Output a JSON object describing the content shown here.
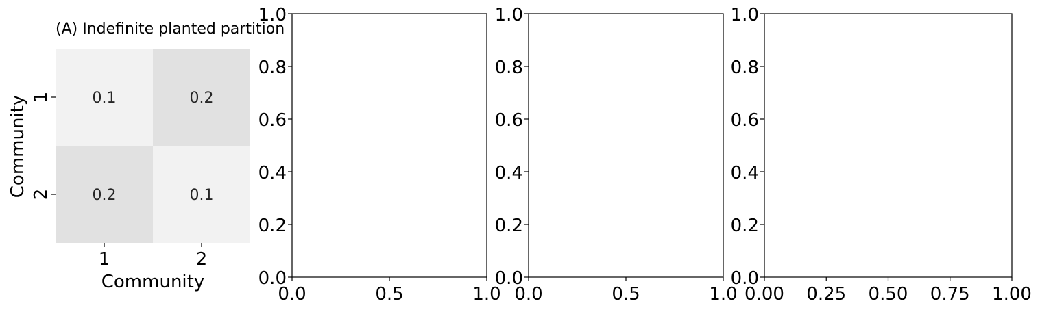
{
  "chart_data": [
    {
      "type": "heatmap",
      "title": "(A) Indefinite planted partition",
      "xlabel": "Community",
      "ylabel": "Community",
      "x_categories": [
        "1",
        "2"
      ],
      "y_categories": [
        "1",
        "2"
      ],
      "values": [
        [
          0.1,
          0.2
        ],
        [
          0.2,
          0.1
        ]
      ],
      "cell_labels": [
        [
          "0.1",
          "0.2"
        ],
        [
          "0.2",
          "0.1"
        ]
      ],
      "colors": {
        "low": "#f2f2f2",
        "high": "#e1e1e1",
        "annotation": "#262626"
      },
      "colorbar": false
    },
    {
      "type": "line",
      "title": "",
      "xlabel": "",
      "ylabel": "",
      "series": [],
      "xlim": [
        0,
        1
      ],
      "ylim": [
        0,
        1
      ],
      "xticks": [
        "0.0",
        "0.5",
        "1.0"
      ],
      "yticks": [
        "0.0",
        "0.2",
        "0.4",
        "0.6",
        "0.8",
        "1.0"
      ]
    },
    {
      "type": "line",
      "title": "",
      "xlabel": "",
      "ylabel": "",
      "series": [],
      "xlim": [
        0,
        1
      ],
      "ylim": [
        0,
        1
      ],
      "xticks": [
        "0.0",
        "0.5",
        "1.0"
      ],
      "yticks": [
        "0.0",
        "0.2",
        "0.4",
        "0.6",
        "0.8",
        "1.0"
      ]
    },
    {
      "type": "line",
      "title": "",
      "xlabel": "",
      "ylabel": "",
      "series": [],
      "xlim": [
        0,
        1
      ],
      "ylim": [
        0,
        1
      ],
      "xticks": [
        "0.00",
        "0.25",
        "0.50",
        "0.75",
        "1.00"
      ],
      "yticks": [
        "0.0",
        "0.2",
        "0.4",
        "0.6",
        "0.8",
        "1.0"
      ]
    }
  ]
}
